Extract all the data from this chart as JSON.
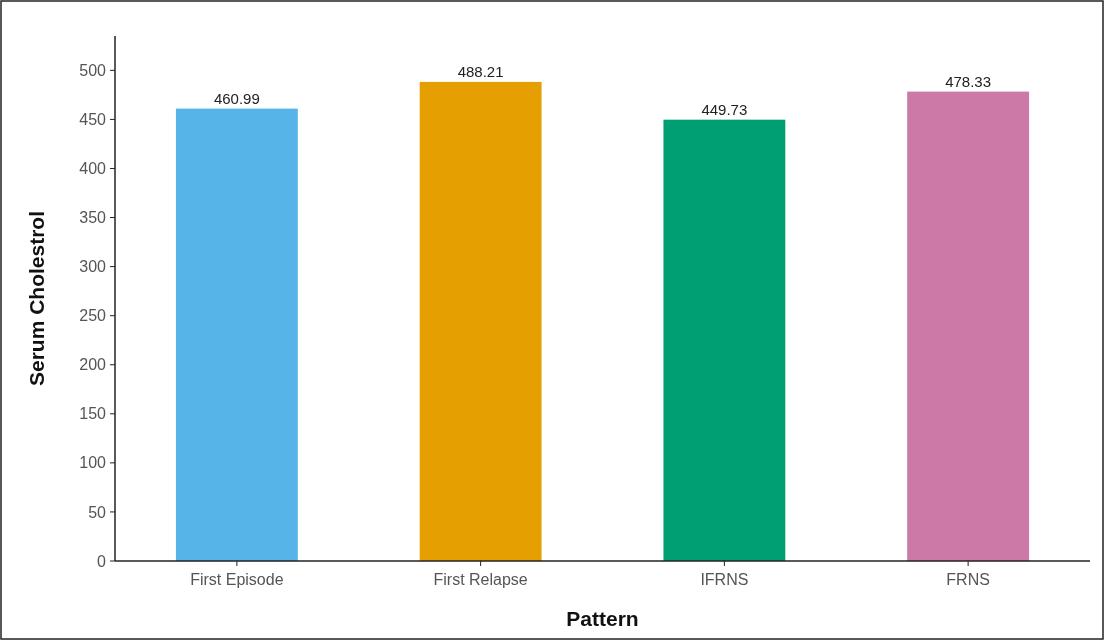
{
  "chart_data": {
    "type": "bar",
    "xlabel": "Pattern",
    "ylabel": "Serum Cholestrol",
    "categories": [
      "First Episode",
      "First Relapse",
      "IFRNS",
      "FRNS"
    ],
    "values": [
      460.99,
      488.21,
      449.73,
      478.33
    ],
    "colors": [
      "#56b4e9",
      "#e69f00",
      "#009e73",
      "#cc79a7"
    ],
    "ylim": [
      0,
      535
    ],
    "yticks": [
      0,
      50,
      100,
      150,
      200,
      250,
      300,
      350,
      400,
      450,
      500
    ],
    "data_labels": true
  }
}
